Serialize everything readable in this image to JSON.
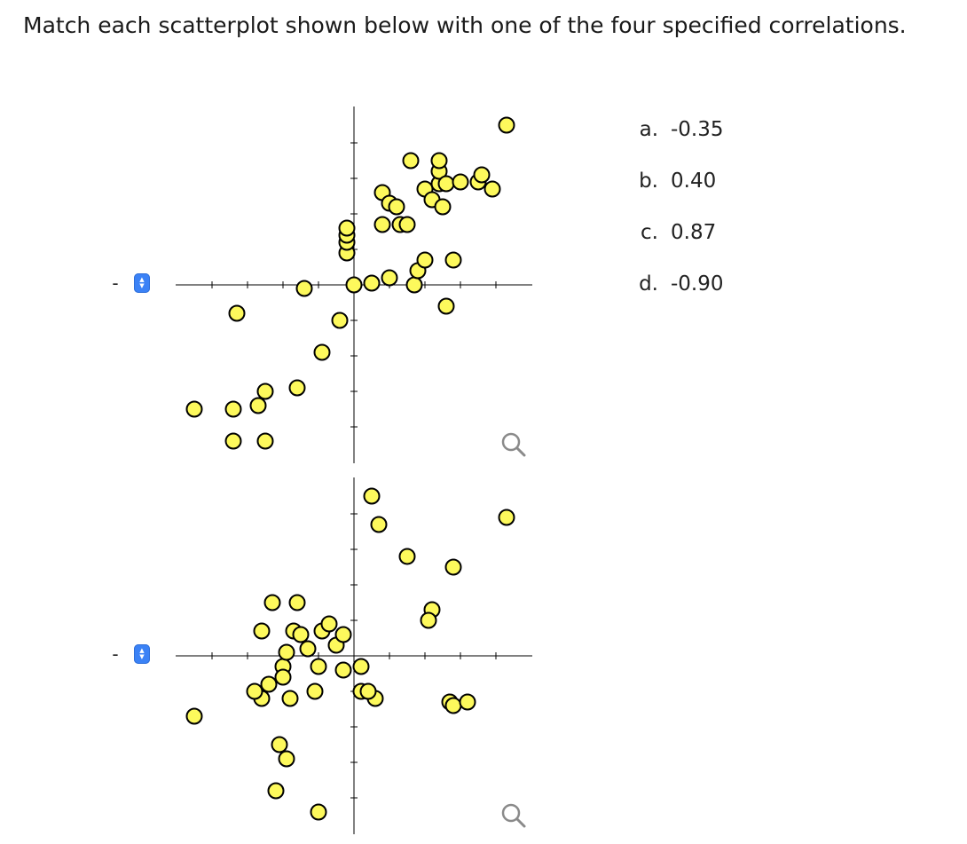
{
  "instruction": "Match each scatterplot shown below with one of the four specified correlations.",
  "options": [
    {
      "letter": "a.",
      "value": "-0.35"
    },
    {
      "letter": "b.",
      "value": "0.40"
    },
    {
      "letter": "c.",
      "value": "0.87"
    },
    {
      "letter": "d.",
      "value": "-0.90"
    }
  ],
  "matchers": [
    {
      "selected": "-"
    },
    {
      "selected": "-"
    }
  ],
  "colors": {
    "point_fill": "#fdf95c",
    "point_stroke": "#000000",
    "axis": "#000000",
    "stepper": "#3b82f6"
  },
  "icons": [
    "zoom-icon",
    "stepper-arrows-icon"
  ],
  "chart_data": [
    {
      "type": "scatter",
      "title": "",
      "xlabel": "",
      "ylabel": "",
      "xlim": [
        -5,
        5
      ],
      "ylim": [
        -5,
        5
      ],
      "ticks": [
        -4,
        -3,
        -2,
        -1,
        1,
        2,
        3,
        4
      ],
      "points": [
        [
          -4.5,
          -3.5
        ],
        [
          -3.3,
          -0.8
        ],
        [
          -3.4,
          -3.5
        ],
        [
          -3.4,
          -4.4
        ],
        [
          -2.7,
          -3.4
        ],
        [
          -2.5,
          -3.0
        ],
        [
          -2.5,
          -4.4
        ],
        [
          -1.6,
          -2.9
        ],
        [
          -1.4,
          -0.1
        ],
        [
          -0.9,
          -1.9
        ],
        [
          -0.4,
          -1.0
        ],
        [
          -0.2,
          0.9
        ],
        [
          -0.2,
          1.2
        ],
        [
          -0.2,
          1.4
        ],
        [
          -0.2,
          1.6
        ],
        [
          0.0,
          0.0
        ],
        [
          0.5,
          0.05
        ],
        [
          0.8,
          1.7
        ],
        [
          0.8,
          2.6
        ],
        [
          1.0,
          2.3
        ],
        [
          1.0,
          0.2
        ],
        [
          1.2,
          2.2
        ],
        [
          1.3,
          1.7
        ],
        [
          1.6,
          3.5
        ],
        [
          1.7,
          0.0
        ],
        [
          1.8,
          0.4
        ],
        [
          1.5,
          1.7
        ],
        [
          2.0,
          2.7
        ],
        [
          2.0,
          0.7
        ],
        [
          2.2,
          2.4
        ],
        [
          2.4,
          2.85
        ],
        [
          2.4,
          3.2
        ],
        [
          2.4,
          3.5
        ],
        [
          2.5,
          2.2
        ],
        [
          2.6,
          -0.6
        ],
        [
          2.8,
          0.7
        ],
        [
          2.6,
          2.85
        ],
        [
          3.0,
          2.9
        ],
        [
          3.5,
          2.9
        ],
        [
          3.6,
          3.1
        ],
        [
          3.9,
          2.7
        ],
        [
          4.3,
          4.5
        ]
      ]
    },
    {
      "type": "scatter",
      "title": "",
      "xlabel": "",
      "ylabel": "",
      "xlim": [
        -5,
        5
      ],
      "ylim": [
        -5,
        5
      ],
      "ticks": [
        -4,
        -3,
        -2,
        -1,
        1,
        2,
        3,
        4
      ],
      "points": [
        [
          -4.5,
          -1.7
        ],
        [
          -2.6,
          -1.2
        ],
        [
          -2.8,
          -1.0
        ],
        [
          -2.6,
          0.7
        ],
        [
          -2.3,
          1.5
        ],
        [
          -1.6,
          1.5
        ],
        [
          -2.0,
          -0.3
        ],
        [
          -1.9,
          0.1
        ],
        [
          -2.1,
          -2.5
        ],
        [
          -1.9,
          -2.9
        ],
        [
          -2.2,
          -3.8
        ],
        [
          -2.4,
          -0.8
        ],
        [
          -2.0,
          -0.6
        ],
        [
          -1.8,
          -1.2
        ],
        [
          -1.7,
          0.7
        ],
        [
          -1.5,
          0.6
        ],
        [
          -1.3,
          0.2
        ],
        [
          -1.1,
          -1.0
        ],
        [
          -1.0,
          -0.3
        ],
        [
          -0.9,
          0.7
        ],
        [
          -0.7,
          0.9
        ],
        [
          -0.5,
          0.3
        ],
        [
          -0.3,
          0.6
        ],
        [
          -1.0,
          -4.4
        ],
        [
          -0.3,
          -0.4
        ],
        [
          0.2,
          -0.3
        ],
        [
          0.2,
          -1.0
        ],
        [
          0.6,
          -1.2
        ],
        [
          0.4,
          -1.0
        ],
        [
          0.5,
          4.5
        ],
        [
          0.7,
          3.7
        ],
        [
          1.5,
          2.8
        ],
        [
          2.2,
          1.3
        ],
        [
          2.1,
          1.0
        ],
        [
          2.7,
          -1.3
        ],
        [
          2.8,
          -1.4
        ],
        [
          3.2,
          -1.3
        ],
        [
          2.8,
          2.5
        ],
        [
          4.3,
          3.9
        ]
      ]
    }
  ]
}
